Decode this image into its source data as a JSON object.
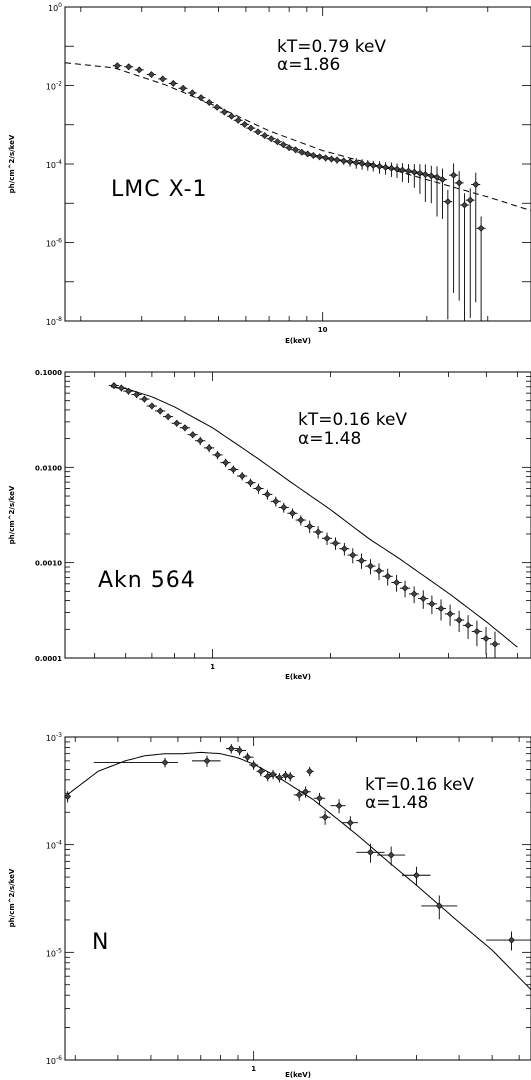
{
  "chart_data": [
    {
      "type": "scatter",
      "xscale": "log",
      "yscale": "log",
      "xlim": [
        1.8,
        40
      ],
      "ylim": [
        1e-08,
        1
      ],
      "xlabel": "E(keV)",
      "ylabel": "ph/cm^2/s/keV",
      "x_tick_labels": [
        {
          "value": 10,
          "label": "10"
        }
      ],
      "y_tick_labels": [
        {
          "value": 1.0,
          "base": "10",
          "exp": "0"
        },
        {
          "value": 0.01,
          "base": "10",
          "exp": "-2"
        },
        {
          "value": 0.0001,
          "base": "10",
          "exp": "-4"
        },
        {
          "value": 1e-06,
          "base": "10",
          "exp": "-6"
        },
        {
          "value": 1e-08,
          "base": "10",
          "exp": "-8"
        }
      ],
      "annotations": [
        "kT=0.79 keV",
        "α=1.86"
      ],
      "source_label": "LMC X-1",
      "model": {
        "style": "dashed",
        "x": [
          1.8,
          2.5,
          3.5,
          5,
          7,
          10,
          15,
          20,
          30,
          40
        ],
        "y": [
          0.038,
          0.028,
          0.0105,
          0.0028,
          0.0007,
          0.00022,
          8.3e-05,
          4e-05,
          1.45e-05,
          6.5e-06
        ]
      },
      "points": {
        "x": [
          2.55,
          2.75,
          2.95,
          3.2,
          3.45,
          3.7,
          3.95,
          4.2,
          4.45,
          4.7,
          4.95,
          5.2,
          5.45,
          5.7,
          5.95,
          6.2,
          6.5,
          6.8,
          7.1,
          7.4,
          7.7,
          8.0,
          8.35,
          8.7,
          9.05,
          9.4,
          9.8,
          10.2,
          10.6,
          11.0,
          11.5,
          12.0,
          12.5,
          13.0,
          13.5,
          14.0,
          14.6,
          15.2,
          15.8,
          16.4,
          17.0,
          17.7,
          18.4,
          19.1,
          19.8,
          20.6,
          21.4,
          22.2,
          23.0,
          23.9,
          24.8,
          25.7,
          26.7,
          27.7,
          28.7
        ],
        "y": [
          0.032,
          0.03,
          0.025,
          0.019,
          0.0147,
          0.0113,
          0.0085,
          0.0065,
          0.0049,
          0.0037,
          0.0028,
          0.0021,
          0.00165,
          0.0013,
          0.00102,
          0.00082,
          0.00066,
          0.00053,
          0.00044,
          0.00037,
          0.00031,
          0.00026,
          0.00023,
          0.0002,
          0.00018,
          0.000165,
          0.000153,
          0.000143,
          0.000134,
          0.000127,
          0.00012,
          0.000114,
          0.000108,
          0.000102,
          9.7e-05,
          9.2e-05,
          8.7e-05,
          8.2e-05,
          7.8e-05,
          7.4e-05,
          7e-05,
          6.6e-05,
          6.2e-05,
          5.8e-05,
          5.4e-05,
          5e-05,
          4.6e-05,
          4e-05,
          1.1e-05,
          5.2e-05,
          3.3e-05,
          9e-06,
          1.2e-05,
          3e-05,
          2.3e-06
        ],
        "yerr_frac": [
          0.15,
          0.15,
          0.15,
          0.15,
          0.15,
          0.15,
          0.15,
          0.15,
          0.15,
          0.15,
          0.15,
          0.15,
          0.15,
          0.15,
          0.15,
          0.15,
          0.15,
          0.15,
          0.15,
          0.15,
          0.15,
          0.15,
          0.15,
          0.15,
          0.15,
          0.15,
          0.18,
          0.18,
          0.18,
          0.2,
          0.2,
          0.25,
          0.3,
          0.3,
          0.3,
          0.3,
          0.35,
          0.35,
          0.4,
          0.4,
          0.5,
          0.5,
          0.6,
          0.7,
          0.8,
          0.8,
          0.9,
          0.9,
          0.999,
          0.999,
          0.999,
          0.999,
          0.999,
          0.999,
          0.999
        ]
      }
    },
    {
      "type": "scatter",
      "xscale": "log",
      "yscale": "log",
      "xlim": [
        0.42,
        6.5
      ],
      "ylim": [
        0.0001,
        0.1
      ],
      "xlabel": "E(keV)",
      "ylabel": "ph/cm^2/s/keV",
      "x_tick_labels": [
        {
          "value": 1,
          "label": "1"
        }
      ],
      "y_tick_labels": [
        {
          "value": 0.1,
          "label": "0.1000"
        },
        {
          "value": 0.01,
          "label": "0.0100"
        },
        {
          "value": 0.001,
          "label": "0.0010"
        },
        {
          "value": 0.0001,
          "label": "0.0001"
        }
      ],
      "annotations": [
        "kT=0.16 keV",
        "α=1.48"
      ],
      "source_label": "Akn 564",
      "model": {
        "style": "solid",
        "x": [
          0.55,
          0.6,
          0.7,
          0.8,
          1.0,
          1.3,
          1.6,
          2.0,
          2.5,
          3.0,
          4.0,
          5.0,
          6.0
        ],
        "y": [
          0.07,
          0.067,
          0.055,
          0.043,
          0.026,
          0.0125,
          0.0068,
          0.0036,
          0.0018,
          0.0011,
          0.00048,
          0.00024,
          0.00013
        ]
      },
      "points": {
        "x": [
          0.56,
          0.585,
          0.61,
          0.64,
          0.67,
          0.7,
          0.735,
          0.77,
          0.81,
          0.85,
          0.89,
          0.93,
          0.98,
          1.03,
          1.08,
          1.13,
          1.19,
          1.25,
          1.31,
          1.38,
          1.45,
          1.52,
          1.6,
          1.68,
          1.77,
          1.86,
          1.96,
          2.06,
          2.17,
          2.28,
          2.4,
          2.53,
          2.66,
          2.8,
          2.95,
          3.1,
          3.27,
          3.45,
          3.63,
          3.83,
          4.04,
          4.26,
          4.49,
          4.73,
          4.99,
          5.26
        ],
        "y": [
          0.072,
          0.068,
          0.063,
          0.058,
          0.052,
          0.044,
          0.039,
          0.034,
          0.029,
          0.026,
          0.022,
          0.019,
          0.016,
          0.0135,
          0.0112,
          0.0095,
          0.0081,
          0.0069,
          0.006,
          0.0052,
          0.0044,
          0.0038,
          0.0033,
          0.0028,
          0.0024,
          0.0021,
          0.0018,
          0.0016,
          0.0014,
          0.0012,
          0.00105,
          0.00092,
          0.00082,
          0.00072,
          0.00062,
          0.00054,
          0.00047,
          0.00042,
          0.00037,
          0.00033,
          0.00029,
          0.00025,
          0.00022,
          0.00019,
          0.00016,
          0.00014
        ],
        "yerr_frac": [
          0.08,
          0.08,
          0.08,
          0.08,
          0.08,
          0.08,
          0.08,
          0.08,
          0.08,
          0.08,
          0.08,
          0.1,
          0.1,
          0.1,
          0.1,
          0.1,
          0.1,
          0.1,
          0.12,
          0.12,
          0.12,
          0.12,
          0.12,
          0.12,
          0.15,
          0.15,
          0.15,
          0.15,
          0.15,
          0.18,
          0.18,
          0.18,
          0.2,
          0.2,
          0.2,
          0.2,
          0.2,
          0.22,
          0.22,
          0.25,
          0.25,
          0.25,
          0.28,
          0.3,
          0.32,
          0.35
        ]
      }
    },
    {
      "type": "scatter",
      "xscale": "log",
      "yscale": "log",
      "xlim": [
        0.28,
        6.5
      ],
      "ylim": [
        1e-06,
        0.001
      ],
      "xlabel": "E(keV)",
      "ylabel": "ph/cm^2/s/keV",
      "x_tick_labels": [
        {
          "value": 1,
          "label": "1"
        }
      ],
      "y_tick_labels": [
        {
          "value": 0.001,
          "base": "10",
          "exp": "-3"
        },
        {
          "value": 0.0001,
          "base": "10",
          "exp": "-4"
        },
        {
          "value": 1e-05,
          "base": "10",
          "exp": "-5"
        },
        {
          "value": 1e-06,
          "base": "10",
          "exp": "-6"
        }
      ],
      "annotations": [
        "kT=0.16 keV",
        "α=1.48"
      ],
      "source_label": "N",
      "model": {
        "style": "solid",
        "x": [
          0.28,
          0.35,
          0.42,
          0.48,
          0.55,
          0.62,
          0.7,
          0.8,
          0.9,
          1.0,
          1.2,
          1.5,
          2.0,
          2.5,
          3.0,
          4.0,
          5.0,
          6.5
        ],
        "y": [
          0.00028,
          0.00048,
          0.0006,
          0.00067,
          0.0007,
          0.0007,
          0.00072,
          0.0007,
          0.00064,
          0.00056,
          0.00041,
          0.00026,
          0.000125,
          6.8e-05,
          4.2e-05,
          1.9e-05,
          1.05e-05,
          4.5e-06
        ]
      },
      "points": {
        "x": [
          0.285,
          0.55,
          0.73,
          0.86,
          0.91,
          0.96,
          1.0,
          1.05,
          1.1,
          1.14,
          1.19,
          1.24,
          1.28,
          1.36,
          1.42,
          1.46,
          1.56,
          1.62,
          1.78,
          1.92,
          2.2,
          2.53,
          3.0,
          3.5,
          5.7
        ],
        "y": [
          0.00028,
          0.00058,
          0.0006,
          0.00078,
          0.00075,
          0.00065,
          0.00055,
          0.00048,
          0.00043,
          0.00045,
          0.00042,
          0.00044,
          0.00043,
          0.00029,
          0.00031,
          0.00048,
          0.00027,
          0.00018,
          0.00023,
          0.00016,
          8.5e-05,
          8e-05,
          5.2e-05,
          2.7e-05,
          1.3e-05
        ],
        "xerr": [
          [
            0.283,
            0.29
          ],
          [
            0.34,
            0.6
          ],
          [
            0.66,
            0.8
          ],
          [
            0.83,
            0.9
          ],
          [
            0.88,
            0.95
          ],
          [
            0.93,
            1.0
          ],
          [
            0.97,
            1.03
          ],
          [
            1.02,
            1.08
          ],
          [
            1.07,
            1.13
          ],
          [
            1.11,
            1.17
          ],
          [
            1.16,
            1.22
          ],
          [
            1.21,
            1.27
          ],
          [
            1.25,
            1.32
          ],
          [
            1.31,
            1.4
          ],
          [
            1.38,
            1.47
          ],
          [
            1.43,
            1.5
          ],
          [
            1.5,
            1.62
          ],
          [
            1.56,
            1.68
          ],
          [
            1.68,
            1.86
          ],
          [
            1.82,
            2.02
          ],
          [
            2.0,
            2.42
          ],
          [
            2.3,
            2.78
          ],
          [
            2.72,
            3.3
          ],
          [
            3.1,
            3.95
          ],
          [
            4.8,
            7.0
          ]
        ],
        "yerr_frac": [
          0.12,
          0.1,
          0.12,
          0.1,
          0.1,
          0.1,
          0.1,
          0.1,
          0.1,
          0.1,
          0.1,
          0.1,
          0.1,
          0.12,
          0.12,
          0.1,
          0.12,
          0.15,
          0.15,
          0.15,
          0.2,
          0.2,
          0.2,
          0.25,
          0.2
        ]
      }
    }
  ]
}
